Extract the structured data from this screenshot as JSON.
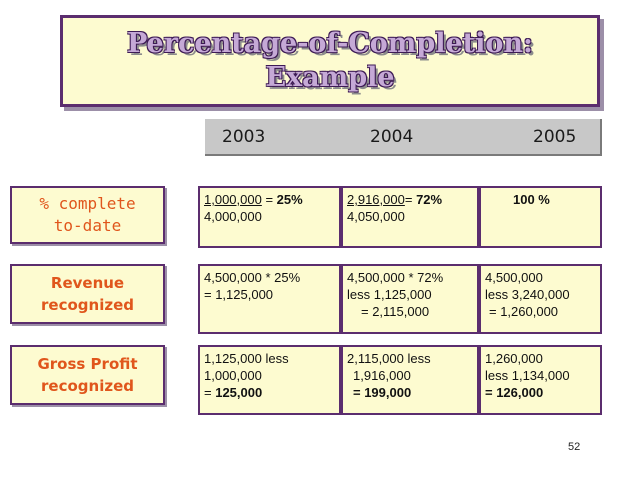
{
  "slide": {
    "title_line1": "Percentage-of-Completion:",
    "title_line2": "Example",
    "page_number": "52"
  },
  "years": [
    "2003",
    "2004",
    "2005"
  ],
  "rows": [
    {
      "label_line1": "% complete",
      "label_line2": "to-date",
      "cells": [
        {
          "l1_num": "1,000,000",
          "l1_eq": " = ",
          "l1_pct": "25%",
          "l2": "4,000,000"
        },
        {
          "l1_num": "2,916,000",
          "l1_eq": "= ",
          "l1_pct": "72%",
          "l2": "4,050,000"
        },
        {
          "l1": "100 %"
        }
      ]
    },
    {
      "label_line1": "Revenue",
      "label_line2": "recognized",
      "cells": [
        {
          "l1": "4,500,000 * 25%",
          "l2": "= 1,125,000"
        },
        {
          "l1": "4,500,000 * 72%",
          "l2": "less 1,125,000",
          "l3": "= 2,115,000"
        },
        {
          "l1": "4,500,000",
          "l2": "less 3,240,000",
          "l3": "= 1,260,000"
        }
      ]
    },
    {
      "label_line1": "Gross Profit",
      "label_line2": "recognized",
      "cells": [
        {
          "l1": "1,125,000 less",
          "l2": "1,000,000",
          "l3_pre": "= ",
          "l3_val": "125,000"
        },
        {
          "l1": "2,115,000 less",
          "l2": "1,916,000",
          "l3": "= 199,000"
        },
        {
          "l1": "1,260,000",
          "l2": "less 1,134,000",
          "l3": "= 126,000"
        }
      ]
    }
  ]
}
